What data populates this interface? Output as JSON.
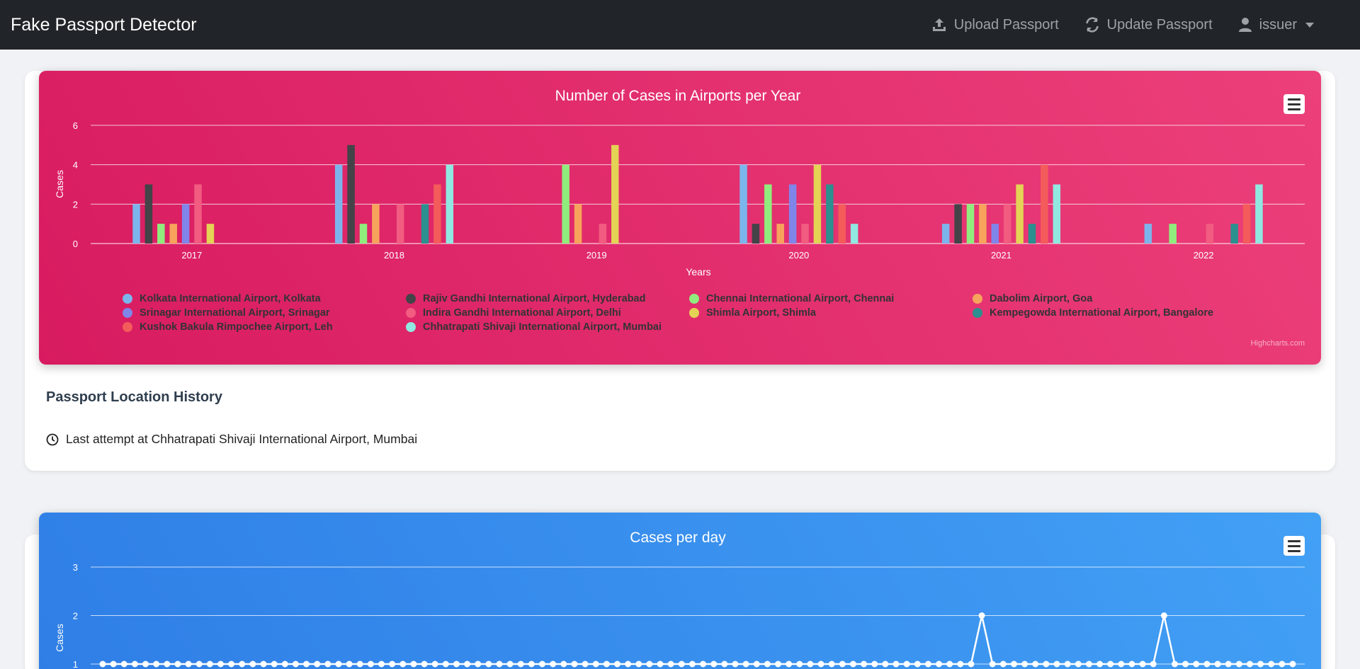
{
  "navbar": {
    "brand": "Fake Passport Detector",
    "upload_label": "Upload Passport",
    "update_label": "Update Passport",
    "user_label": "issuer"
  },
  "colors": {
    "navbar_bg": "#212529",
    "pink_gradient": [
      "#d81b60",
      "#ec407a"
    ],
    "blue_gradient": [
      "#2f7ee6",
      "#42a0f5"
    ]
  },
  "history": {
    "title": "Passport Location History",
    "last_attempt": "Last attempt at Chhatrapati Shivaji International Airport, Mumbai"
  },
  "chart_data": [
    {
      "type": "bar",
      "title": "Number of Cases in Airports per Year",
      "xlabel": "Years",
      "ylabel": "Cases",
      "ylim": [
        0,
        6
      ],
      "yticks": [
        0,
        2,
        4,
        6
      ],
      "grid": true,
      "legend_position": "bottom",
      "categories": [
        "2017",
        "2018",
        "2019",
        "2020",
        "2021",
        "2022"
      ],
      "series": [
        {
          "name": "Kolkata International Airport, Kolkata",
          "color": "#7cb5ec",
          "values": [
            2,
            4,
            0,
            4,
            1,
            1
          ]
        },
        {
          "name": "Rajiv Gandhi International Airport, Hyderabad",
          "color": "#434348",
          "values": [
            3,
            5,
            0,
            1,
            2,
            0
          ]
        },
        {
          "name": "Chennai International Airport, Chennai",
          "color": "#90ed7d",
          "values": [
            1,
            1,
            4,
            3,
            2,
            1
          ]
        },
        {
          "name": "Dabolim Airport, Goa",
          "color": "#f7a35c",
          "values": [
            1,
            2,
            2,
            1,
            2,
            0
          ]
        },
        {
          "name": "Srinagar International Airport, Srinagar",
          "color": "#8085e9",
          "values": [
            2,
            0,
            0,
            3,
            1,
            0
          ]
        },
        {
          "name": "Indira Gandhi International Airport, Delhi",
          "color": "#f15c80",
          "values": [
            3,
            2,
            1,
            1,
            2,
            1
          ]
        },
        {
          "name": "Shimla Airport, Shimla",
          "color": "#e4d354",
          "values": [
            1,
            0,
            5,
            4,
            3,
            0
          ]
        },
        {
          "name": "Kempegowda International Airport, Bangalore",
          "color": "#2b908f",
          "values": [
            0,
            2,
            0,
            3,
            1,
            1
          ]
        },
        {
          "name": "Kushok Bakula Rimpochee Airport, Leh",
          "color": "#f45b5b",
          "values": [
            0,
            3,
            0,
            2,
            4,
            2
          ]
        },
        {
          "name": "Chhatrapati Shivaji International Airport, Mumbai",
          "color": "#91e8e1",
          "values": [
            0,
            4,
            0,
            1,
            3,
            3
          ]
        }
      ],
      "credits": "Highcharts.com"
    },
    {
      "type": "line",
      "title": "Cases per day",
      "ylabel": "Cases",
      "ylim": [
        1,
        3
      ],
      "yticks": [
        1,
        2,
        3
      ],
      "grid": true,
      "series": [
        {
          "color": "#ffffff",
          "values": [
            1,
            1,
            1,
            1,
            1,
            1,
            1,
            1,
            1,
            1,
            1,
            1,
            1,
            1,
            1,
            1,
            1,
            1,
            1,
            1,
            1,
            1,
            1,
            1,
            1,
            1,
            1,
            1,
            1,
            1,
            1,
            1,
            1,
            1,
            1,
            1,
            1,
            1,
            1,
            1,
            1,
            1,
            1,
            1,
            1,
            1,
            1,
            1,
            1,
            1,
            1,
            1,
            1,
            1,
            1,
            1,
            1,
            1,
            1,
            1,
            1,
            1,
            1,
            1,
            1,
            1,
            1,
            1,
            1,
            1,
            1,
            1,
            1,
            1,
            1,
            1,
            1,
            1,
            1,
            1,
            1,
            1,
            2,
            1,
            1,
            1,
            1,
            1,
            1,
            1,
            1,
            1,
            1,
            1,
            1,
            1,
            1,
            1,
            1,
            2,
            1,
            1,
            1,
            1,
            1,
            1,
            1,
            1,
            1,
            1,
            1,
            1
          ]
        }
      ]
    }
  ]
}
